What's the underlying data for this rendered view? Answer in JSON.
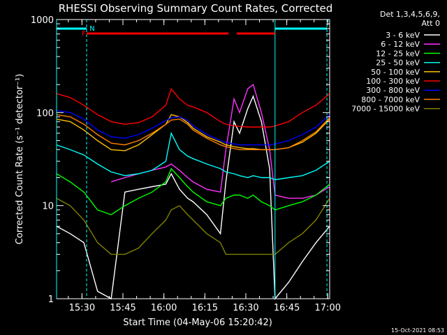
{
  "chart_data": {
    "type": "line",
    "title": "RHESSI Observing Summary Count Rates, Corrected",
    "xlabel": "Start Time (04-May-06 15:20:42)",
    "ylabel": "Corrected Count Rate (s⁻¹ detector⁻¹)",
    "yscale": "log",
    "ylim": [
      1,
      1000
    ],
    "xlim_minutes": [
      0,
      100
    ],
    "x_ticks": [
      {
        "minute": 9.3,
        "label": "15:30"
      },
      {
        "minute": 24.3,
        "label": "15:45"
      },
      {
        "minute": 39.3,
        "label": "16:00"
      },
      {
        "minute": 54.3,
        "label": "16:15"
      },
      {
        "minute": 69.3,
        "label": "16:30"
      },
      {
        "minute": 84.3,
        "label": "16:45"
      },
      {
        "minute": 99.3,
        "label": "17:00"
      }
    ],
    "y_ticks": [
      {
        "value": 1,
        "label": "1"
      },
      {
        "value": 10,
        "label": "10"
      },
      {
        "value": 100,
        "label": "100"
      },
      {
        "value": 1000,
        "label": "1000"
      }
    ],
    "legend": {
      "placement": "top-right",
      "header": [
        "Det 1,3,4,5,6,9,",
        "Att 0"
      ]
    },
    "x": [
      0,
      5,
      10,
      15,
      20,
      25,
      30,
      35,
      40,
      42,
      45,
      48,
      50,
      55,
      60,
      62,
      65,
      67,
      70,
      72,
      75,
      78,
      80,
      85,
      90,
      95,
      100
    ],
    "series": [
      {
        "name": "3 - 6 keV",
        "color": "#ffffff",
        "values": [
          6,
          5,
          4,
          1.2,
          1.0,
          14,
          15,
          16,
          17,
          22,
          15,
          12,
          11,
          8,
          5,
          18,
          80,
          60,
          110,
          150,
          80,
          25,
          1.0,
          1.5,
          2.5,
          4,
          6
        ]
      },
      {
        "name": "6 - 12 keV",
        "color": "#ff33ff",
        "values": [
          null,
          null,
          null,
          null,
          18,
          20,
          22,
          24,
          26,
          28,
          24,
          20,
          18,
          15,
          14,
          40,
          140,
          100,
          180,
          200,
          100,
          40,
          13,
          12,
          12,
          13,
          16
        ]
      },
      {
        "name": "12 - 25 keV",
        "color": "#00ff00",
        "values": [
          22,
          18,
          14,
          9,
          8,
          10,
          12,
          14,
          18,
          25,
          20,
          16,
          14,
          11,
          10,
          12,
          13,
          13,
          12,
          13,
          11,
          10,
          9,
          10,
          11,
          13,
          17
        ]
      },
      {
        "name": "25 - 50 keV",
        "color": "#00ffff",
        "values": [
          45,
          40,
          35,
          28,
          23,
          21,
          22,
          24,
          30,
          60,
          40,
          34,
          32,
          28,
          25,
          23,
          22,
          21,
          20,
          21,
          20,
          20,
          19,
          20,
          21,
          24,
          30
        ]
      },
      {
        "name": "50 - 100 keV",
        "color": "#ffbf00",
        "values": [
          85,
          80,
          65,
          50,
          40,
          39,
          45,
          58,
          75,
          95,
          90,
          78,
          68,
          55,
          48,
          45,
          43,
          42,
          41,
          41,
          40,
          40,
          40,
          42,
          48,
          60,
          85
        ]
      },
      {
        "name": "100 - 300 keV",
        "color": "#ff0000",
        "values": [
          160,
          145,
          120,
          95,
          80,
          75,
          78,
          90,
          120,
          180,
          140,
          120,
          115,
          100,
          80,
          75,
          72,
          71,
          70,
          70,
          70,
          70,
          72,
          80,
          100,
          120,
          160
        ]
      },
      {
        "name": "300 - 800 keV",
        "color": "#0000ff",
        "values": [
          105,
          100,
          85,
          65,
          55,
          53,
          58,
          68,
          82,
          88,
          90,
          82,
          72,
          58,
          50,
          48,
          46,
          45,
          45,
          45,
          45,
          45,
          46,
          50,
          58,
          70,
          95
        ]
      },
      {
        "name": "800 - 7000 keV",
        "color": "#ff7f00",
        "values": [
          95,
          90,
          75,
          58,
          47,
          45,
          50,
          60,
          75,
          83,
          85,
          75,
          65,
          53,
          45,
          43,
          41,
          40,
          40,
          40,
          40,
          40,
          40,
          42,
          50,
          62,
          88
        ]
      },
      {
        "name": "7000 - 15000 keV",
        "color": "#808000",
        "values": [
          12,
          10,
          7,
          4,
          3,
          3,
          3.5,
          5,
          7,
          9,
          10,
          8,
          7,
          5,
          4,
          3,
          3,
          3,
          3,
          3,
          3,
          3,
          3,
          4,
          5,
          7,
          12
        ]
      }
    ],
    "annotations": {
      "flags": [
        {
          "label": "F",
          "color": "#ff0000",
          "segments": [
            [
              11,
              63
            ],
            [
              66,
              80
            ]
          ]
        },
        {
          "label": "N",
          "color": "#00ffff",
          "segments": [
            [
              0,
              11
            ],
            [
              80,
              99
            ]
          ]
        }
      ],
      "night_boundaries": [
        0,
        11,
        80,
        99
      ]
    },
    "timestamp": "15-Oct-2021 08:53"
  }
}
